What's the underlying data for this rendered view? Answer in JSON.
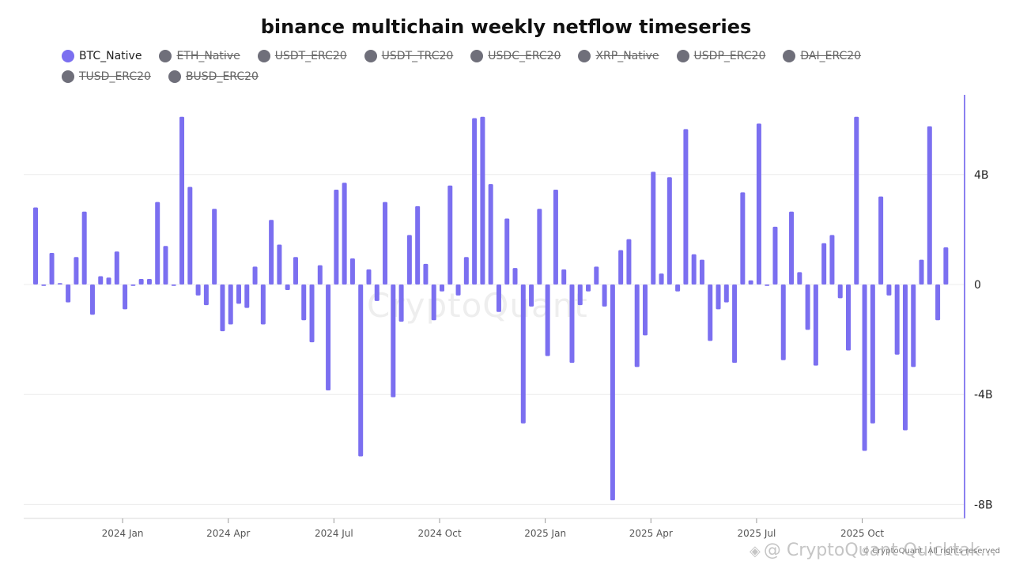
{
  "chart_data": {
    "type": "bar",
    "title": "binance multichain weekly netflow timeseries",
    "legend": [
      {
        "name": "BTC_Native",
        "color": "#7b6ff0",
        "active": true
      },
      {
        "name": "ETH_Native",
        "color": "#6f6f7a",
        "active": false
      },
      {
        "name": "USDT_ERC20",
        "color": "#6f6f7a",
        "active": false
      },
      {
        "name": "USDT_TRC20",
        "color": "#6f6f7a",
        "active": false
      },
      {
        "name": "USDC_ERC20",
        "color": "#6f6f7a",
        "active": false
      },
      {
        "name": "XRP_Native",
        "color": "#6f6f7a",
        "active": false
      },
      {
        "name": "USDP_ERC20",
        "color": "#6f6f7a",
        "active": false
      },
      {
        "name": "DAI_ERC20",
        "color": "#6f6f7a",
        "active": false
      },
      {
        "name": "TUSD_ERC20",
        "color": "#6f6f7a",
        "active": false
      },
      {
        "name": "BUSD_ERC20",
        "color": "#6f6f7a",
        "active": false
      }
    ],
    "x_tick_labels": [
      "2024 Jan",
      "2024 Apr",
      "2024 Jul",
      "2024 Oct",
      "2025 Jan",
      "2025 Apr",
      "2025 Jul",
      "2025 Oct"
    ],
    "x_tick_index": [
      11,
      24,
      37,
      50,
      63,
      76,
      89,
      102
    ],
    "y_tick_labels": [
      "4B",
      "0",
      "-4B",
      "-8B"
    ],
    "y_tick_values": [
      4,
      0,
      -4,
      -8
    ],
    "y_unit": "billions",
    "ylim": [
      -8.5,
      6.9
    ],
    "grid": true,
    "bar_color": "#7b6ff0",
    "series": [
      {
        "name": "BTC_Native",
        "values": [
          2.8,
          -0.05,
          1.15,
          0.05,
          -0.65,
          1.0,
          2.65,
          -1.1,
          0.3,
          0.25,
          1.2,
          -0.9,
          -0.05,
          0.2,
          0.2,
          3.0,
          1.4,
          -0.05,
          6.1,
          3.55,
          -0.4,
          -0.75,
          2.75,
          -1.7,
          -1.45,
          -0.7,
          -0.85,
          0.65,
          -1.45,
          2.35,
          1.45,
          -0.2,
          1.0,
          -1.3,
          -2.1,
          0.7,
          -3.85,
          3.45,
          3.7,
          0.95,
          -6.25,
          0.55,
          -0.6,
          3.0,
          -4.1,
          -1.35,
          1.8,
          2.85,
          0.75,
          -1.3,
          -0.25,
          3.6,
          -0.4,
          1.0,
          6.05,
          6.1,
          3.65,
          -1.0,
          2.4,
          0.6,
          -5.05,
          -0.8,
          2.75,
          -2.6,
          3.45,
          0.55,
          -2.85,
          -0.75,
          -0.25,
          0.65,
          -0.8,
          -7.85,
          1.25,
          1.65,
          -3.0,
          -1.85,
          4.1,
          0.4,
          3.9,
          -0.25,
          5.65,
          1.1,
          0.9,
          -2.05,
          -0.9,
          -0.65,
          -2.85,
          3.35,
          0.15,
          5.85,
          -0.05,
          2.1,
          -2.75,
          2.65,
          0.45,
          -1.65,
          -2.95,
          1.5,
          1.8,
          -0.5,
          -2.4,
          6.1,
          -6.05,
          -5.05,
          3.2,
          -0.4,
          -2.55,
          -5.3,
          -3.0,
          0.9,
          5.75,
          -1.3,
          1.35
        ]
      }
    ]
  },
  "watermark": "CryptoQuant",
  "credit": "© CryptoQuant. All rights reserved",
  "bottom_watermark": "@ CryptoQuant Quicktak...",
  "bottom_watermark_icon": "binance-icon"
}
